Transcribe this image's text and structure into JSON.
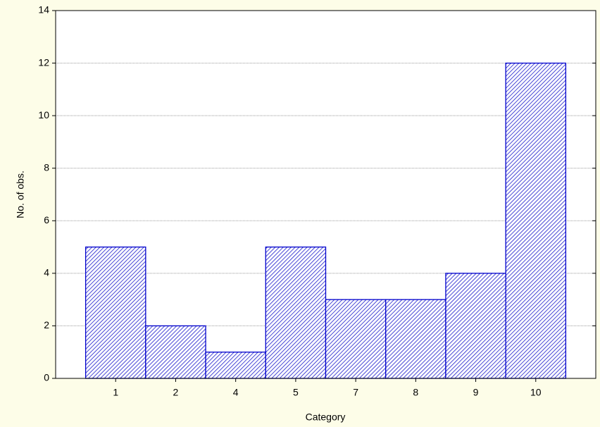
{
  "chart_data": {
    "type": "bar",
    "xlabel": "Category",
    "ylabel": "No. of obs.",
    "categories": [
      "1",
      "2",
      "4",
      "5",
      "7",
      "8",
      "9",
      "10"
    ],
    "values": [
      5,
      2,
      1,
      5,
      3,
      3,
      4,
      12
    ],
    "color": "#0000cc",
    "ylim": [
      0,
      14
    ],
    "yticks": [
      0,
      2,
      4,
      6,
      8,
      10,
      12,
      14
    ],
    "grid": true
  }
}
